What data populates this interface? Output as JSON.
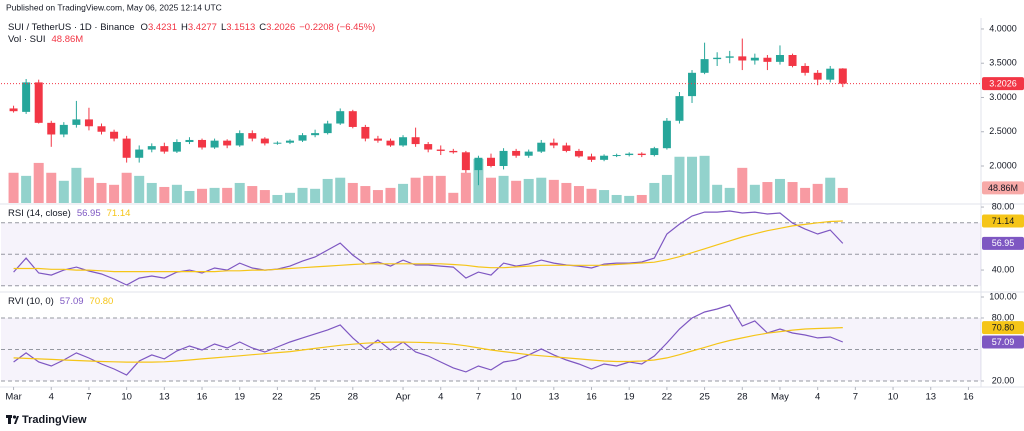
{
  "header": {
    "published": "Published on TradingView.com, May 06, 2025 12:14 UTC"
  },
  "footer": {
    "brand": "TradingView"
  },
  "chart_data": [
    {
      "type": "candlestick",
      "title": "SUI / TetherUS · 1D · Binance",
      "ohlc_labels": [
        "O",
        "H",
        "L",
        "C"
      ],
      "change": "−0.2208 (−6.45%)",
      "up_color": "#26a69a",
      "down_color": "#f23645",
      "x": [
        "Mar 1",
        "Mar 2",
        "Mar 3",
        "Mar 4",
        "Mar 5",
        "Mar 6",
        "Mar 7",
        "Mar 8",
        "Mar 9",
        "Mar 10",
        "Mar 11",
        "Mar 12",
        "Mar 13",
        "Mar 14",
        "Mar 15",
        "Mar 16",
        "Mar 17",
        "Mar 18",
        "Mar 19",
        "Mar 20",
        "Mar 21",
        "Mar 22",
        "Mar 23",
        "Mar 24",
        "Mar 25",
        "Mar 26",
        "Mar 27",
        "Mar 28",
        "Mar 29",
        "Mar 30",
        "Mar 31",
        "Apr 1",
        "Apr 2",
        "Apr 3",
        "Apr 4",
        "Apr 5",
        "Apr 6",
        "Apr 7",
        "Apr 8",
        "Apr 9",
        "Apr 10",
        "Apr 11",
        "Apr 12",
        "Apr 13",
        "Apr 14",
        "Apr 15",
        "Apr 16",
        "Apr 17",
        "Apr 18",
        "Apr 19",
        "Apr 20",
        "Apr 21",
        "Apr 22",
        "Apr 23",
        "Apr 24",
        "Apr 25",
        "Apr 26",
        "Apr 27",
        "Apr 28",
        "Apr 29",
        "Apr 30",
        "May 1",
        "May 2",
        "May 3",
        "May 4",
        "May 5",
        "May 6"
      ],
      "open": [
        2.84,
        2.79,
        3.22,
        2.63,
        2.46,
        2.6,
        2.68,
        2.58,
        2.5,
        2.4,
        2.12,
        2.24,
        2.29,
        2.21,
        2.35,
        2.38,
        2.27,
        2.37,
        2.3,
        2.48,
        2.4,
        2.33,
        2.34,
        2.37,
        2.45,
        2.48,
        2.62,
        2.8,
        2.57,
        2.4,
        2.37,
        2.3,
        2.42,
        2.32,
        2.24,
        2.22,
        2.2,
        1.94,
        2.12,
        2.0,
        2.22,
        2.15,
        2.21,
        2.34,
        2.3,
        2.22,
        2.14,
        2.09,
        2.15,
        2.16,
        2.18,
        2.16,
        2.26,
        2.66,
        3.02,
        3.36,
        3.56,
        3.58,
        3.6,
        3.54,
        3.58,
        3.52,
        3.62,
        3.46,
        3.36,
        3.26,
        3.4231
      ],
      "high": [
        2.88,
        3.27,
        3.26,
        2.66,
        2.64,
        2.95,
        2.85,
        2.62,
        2.53,
        2.44,
        2.3,
        2.33,
        2.34,
        2.39,
        2.42,
        2.4,
        2.4,
        2.39,
        2.52,
        2.52,
        2.42,
        2.36,
        2.39,
        2.48,
        2.53,
        2.66,
        2.84,
        2.82,
        2.6,
        2.44,
        2.4,
        2.45,
        2.56,
        2.35,
        2.3,
        2.25,
        2.22,
        2.15,
        2.18,
        2.26,
        2.25,
        2.24,
        2.38,
        2.4,
        2.34,
        2.25,
        2.18,
        2.17,
        2.18,
        2.2,
        2.2,
        2.28,
        2.7,
        3.08,
        3.4,
        3.8,
        3.66,
        3.68,
        3.86,
        3.64,
        3.62,
        3.76,
        3.64,
        3.5,
        3.4,
        3.46,
        3.4277
      ],
      "low": [
        2.78,
        2.76,
        2.62,
        2.28,
        2.42,
        2.56,
        2.52,
        2.46,
        2.36,
        2.05,
        2.05,
        2.2,
        2.18,
        2.19,
        2.32,
        2.24,
        2.25,
        2.26,
        2.28,
        2.36,
        2.3,
        2.31,
        2.32,
        2.35,
        2.42,
        2.46,
        2.6,
        2.55,
        2.36,
        2.34,
        2.28,
        2.28,
        2.28,
        2.2,
        2.16,
        2.18,
        1.9,
        1.72,
        1.98,
        1.95,
        2.12,
        2.12,
        2.19,
        2.26,
        2.2,
        2.12,
        2.06,
        2.07,
        2.13,
        2.14,
        2.13,
        2.14,
        2.24,
        2.62,
        2.92,
        3.34,
        3.46,
        3.5,
        3.4,
        3.48,
        3.4,
        3.48,
        3.44,
        3.32,
        3.18,
        3.22,
        3.1513
      ],
      "close": [
        2.8,
        3.22,
        2.63,
        2.46,
        2.6,
        2.68,
        2.58,
        2.5,
        2.4,
        2.12,
        2.24,
        2.29,
        2.21,
        2.35,
        2.38,
        2.27,
        2.37,
        2.3,
        2.48,
        2.4,
        2.33,
        2.34,
        2.37,
        2.45,
        2.48,
        2.62,
        2.8,
        2.57,
        2.4,
        2.37,
        2.3,
        2.42,
        2.32,
        2.24,
        2.22,
        2.2,
        1.94,
        2.12,
        2.0,
        2.22,
        2.15,
        2.21,
        2.34,
        2.3,
        2.22,
        2.14,
        2.09,
        2.15,
        2.16,
        2.18,
        2.16,
        2.26,
        2.66,
        3.02,
        3.36,
        3.56,
        3.58,
        3.6,
        3.54,
        3.58,
        3.52,
        3.62,
        3.46,
        3.36,
        3.26,
        3.42,
        3.2026
      ],
      "volume": {
        "name": "Vol · SUI",
        "last_label": "48.86M",
        "ylim": [
          0,
          600
        ],
        "values": [
          98,
          88,
          130,
          98,
          72,
          114,
          82,
          65,
          59,
          98,
          88,
          65,
          52,
          59,
          39,
          46,
          49,
          49,
          65,
          55,
          42,
          26,
          33,
          49,
          46,
          78,
          82,
          65,
          55,
          42,
          49,
          62,
          82,
          88,
          88,
          33,
          98,
          143,
          82,
          88,
          72,
          78,
          82,
          75,
          65,
          55,
          46,
          42,
          26,
          23,
          26,
          65,
          91,
          150,
          150,
          153,
          59,
          49,
          114,
          59,
          68,
          78,
          68,
          49,
          62,
          82,
          48.86
        ]
      },
      "xlim": [
        "Feb 28",
        "May 17"
      ],
      "xticks": [
        {
          "value": "Mar 1",
          "label": "Mar"
        },
        {
          "value": "Mar 4",
          "label": "4"
        },
        {
          "value": "Mar 7",
          "label": "7"
        },
        {
          "value": "Mar 10",
          "label": "10"
        },
        {
          "value": "Mar 13",
          "label": "13"
        },
        {
          "value": "Mar 16",
          "label": "16"
        },
        {
          "value": "Mar 19",
          "label": "19"
        },
        {
          "value": "Mar 22",
          "label": "22"
        },
        {
          "value": "Mar 25",
          "label": "25"
        },
        {
          "value": "Mar 28",
          "label": "28"
        },
        {
          "value": "Apr 1",
          "label": "Apr"
        },
        {
          "value": "Apr 4",
          "label": "4"
        },
        {
          "value": "Apr 7",
          "label": "7"
        },
        {
          "value": "Apr 10",
          "label": "10"
        },
        {
          "value": "Apr 13",
          "label": "13"
        },
        {
          "value": "Apr 16",
          "label": "16"
        },
        {
          "value": "Apr 19",
          "label": "19"
        },
        {
          "value": "Apr 22",
          "label": "22"
        },
        {
          "value": "Apr 25",
          "label": "25"
        },
        {
          "value": "Apr 28",
          "label": "28"
        },
        {
          "value": "May 1",
          "label": "May"
        },
        {
          "value": "May 4",
          "label": "4"
        },
        {
          "value": "May 7",
          "label": "7"
        },
        {
          "value": "May 10",
          "label": "10"
        },
        {
          "value": "May 13",
          "label": "13"
        },
        {
          "value": "May 16",
          "label": "16"
        }
      ],
      "ylim": [
        1.46,
        4.16
      ],
      "yticks": [
        {
          "value": 4,
          "label": "4.0000"
        },
        {
          "value": 3.5,
          "label": "3.5000"
        },
        {
          "value": 3,
          "label": "3.0000"
        },
        {
          "value": 2.5,
          "label": "2.5000"
        },
        {
          "value": 2,
          "label": "2.0000"
        }
      ]
    },
    {
      "type": "line",
      "title": "RSI (14, close)",
      "ylim": [
        26.7,
        81.3
      ],
      "yticks": [
        {
          "value": 80,
          "label": "80.00"
        },
        {
          "value": 40,
          "label": "40.00"
        }
      ],
      "levels": [
        70,
        50,
        30
      ],
      "series": [
        {
          "color": "#7e57c2",
          "last_label": "56.95",
          "values": [
            38.7,
            47.6,
            38.1,
            36.8,
            40.0,
            41.9,
            39.4,
            37.5,
            34.3,
            30.5,
            34.9,
            36.2,
            34.9,
            38.7,
            40.0,
            38.1,
            41.3,
            40.0,
            44.4,
            41.3,
            40.0,
            40.6,
            42.5,
            45.7,
            48.3,
            52.7,
            57.1,
            49.5,
            43.8,
            45.1,
            42.5,
            46.3,
            43.2,
            43.2,
            42.5,
            41.9,
            34.9,
            38.7,
            36.8,
            44.4,
            42.5,
            43.8,
            46.3,
            44.4,
            43.2,
            42.5,
            41.3,
            43.8,
            44.4,
            44.4,
            45.1,
            47.6,
            62.9,
            69.2,
            74.3,
            76.8,
            76.8,
            77.5,
            76.2,
            76.8,
            75.6,
            76.2,
            69.8,
            66.0,
            62.9,
            65.4,
            56.95
          ]
        },
        {
          "color": "#f5c518",
          "last_label": "71.14",
          "values": [
            41,
            41,
            41,
            40.5,
            40.5,
            40,
            40,
            39.5,
            39,
            39,
            39,
            39,
            39,
            39,
            39,
            39,
            39,
            39.5,
            39.5,
            40,
            40,
            40.5,
            41,
            41.5,
            42,
            42.5,
            43,
            43.5,
            44,
            44,
            44,
            44,
            44,
            44,
            44,
            43.5,
            43,
            42,
            41.5,
            41.5,
            42,
            42.5,
            43,
            43,
            43,
            43,
            43,
            43,
            43.5,
            44,
            44.5,
            45,
            46.5,
            48.5,
            51,
            53.5,
            56,
            58.5,
            61,
            63,
            65,
            66.5,
            68,
            69,
            70,
            70.8,
            71.14
          ]
        }
      ]
    },
    {
      "type": "line",
      "title": "RVI (10, 0)",
      "ylim": [
        15.2,
        103.8
      ],
      "yticks": [
        {
          "value": 100,
          "label": "100.00"
        },
        {
          "value": 80,
          "label": "80.00"
        },
        {
          "value": 20,
          "label": "20.00"
        }
      ],
      "levels": [
        80,
        50,
        20
      ],
      "series": [
        {
          "color": "#7e57c2",
          "last_label": "57.09",
          "values": [
            38.1,
            46.7,
            38.1,
            34.3,
            40,
            46.7,
            41.9,
            36.2,
            31.4,
            25.7,
            39,
            44.8,
            41,
            48.6,
            53.3,
            49.5,
            55.2,
            51.4,
            57.1,
            51.4,
            47.6,
            52.4,
            57.1,
            61,
            64.8,
            68.6,
            73.3,
            61,
            50.5,
            59,
            49.5,
            57.1,
            47.6,
            43.8,
            38.1,
            32.4,
            28.6,
            34.3,
            30.5,
            38.1,
            40,
            44.8,
            50.5,
            44.8,
            40,
            36.2,
            31.4,
            36.2,
            34.3,
            38.1,
            36.2,
            43.8,
            56.2,
            69.5,
            80,
            85.7,
            88.6,
            92.4,
            72.4,
            77.1,
            65.7,
            69.5,
            65.7,
            63.8,
            61,
            61.9,
            57.09
          ]
        },
        {
          "color": "#f5c518",
          "last_label": "70.80",
          "values": [
            42,
            41.5,
            41,
            40.5,
            40,
            39.5,
            39,
            38.5,
            38.3,
            38,
            38,
            38,
            38.3,
            39,
            40,
            41,
            42,
            43,
            44,
            45,
            46,
            47,
            48,
            49.5,
            51,
            52.5,
            54,
            55,
            56,
            56.5,
            57,
            57,
            56.8,
            56.5,
            56,
            55,
            53.5,
            51.5,
            49.5,
            48,
            46.5,
            45,
            44,
            43,
            42,
            41,
            40,
            39,
            38.5,
            38.5,
            39,
            40,
            42,
            45,
            48.5,
            52,
            55.5,
            58.5,
            61,
            63.5,
            65.5,
            67,
            68.5,
            69.5,
            70,
            70.4,
            70.8
          ]
        }
      ]
    }
  ]
}
